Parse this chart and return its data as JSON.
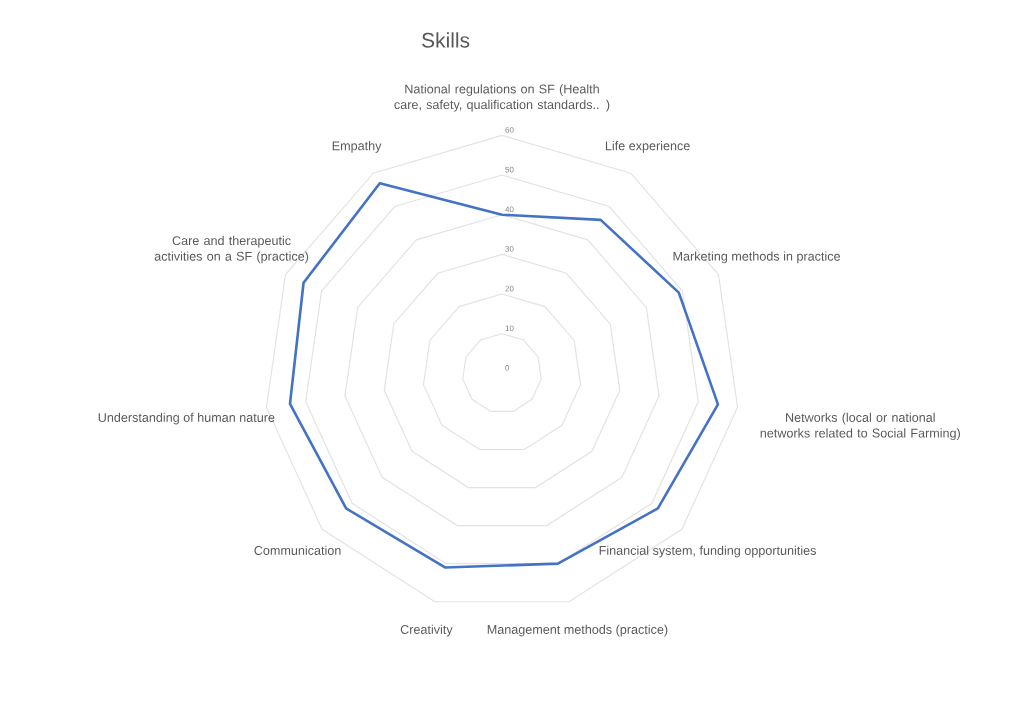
{
  "chart_data": {
    "type": "radar",
    "title": "Skills",
    "categories": [
      "National regulations on SF (Health care, safety, qualification standards.. )",
      "Life experience",
      "Marketing methods in practice",
      "Networks (local or national networks related to Social Farming)",
      "Financial system, funding opportunities",
      "Management methods (practice)",
      "Creativity",
      "Communication",
      "Understanding of human nature",
      "Care and therapeutic activities on a SF (practice)",
      "Empathy"
    ],
    "series": [
      {
        "color": "#4472c4",
        "values": [
          40,
          46,
          49,
          55,
          52,
          50,
          51,
          52,
          54,
          55,
          57
        ]
      }
    ],
    "ylim": [
      0,
      60
    ],
    "yticks": [
      0,
      10,
      20,
      30,
      40,
      50,
      60
    ],
    "grid": true,
    "marker": "none"
  }
}
